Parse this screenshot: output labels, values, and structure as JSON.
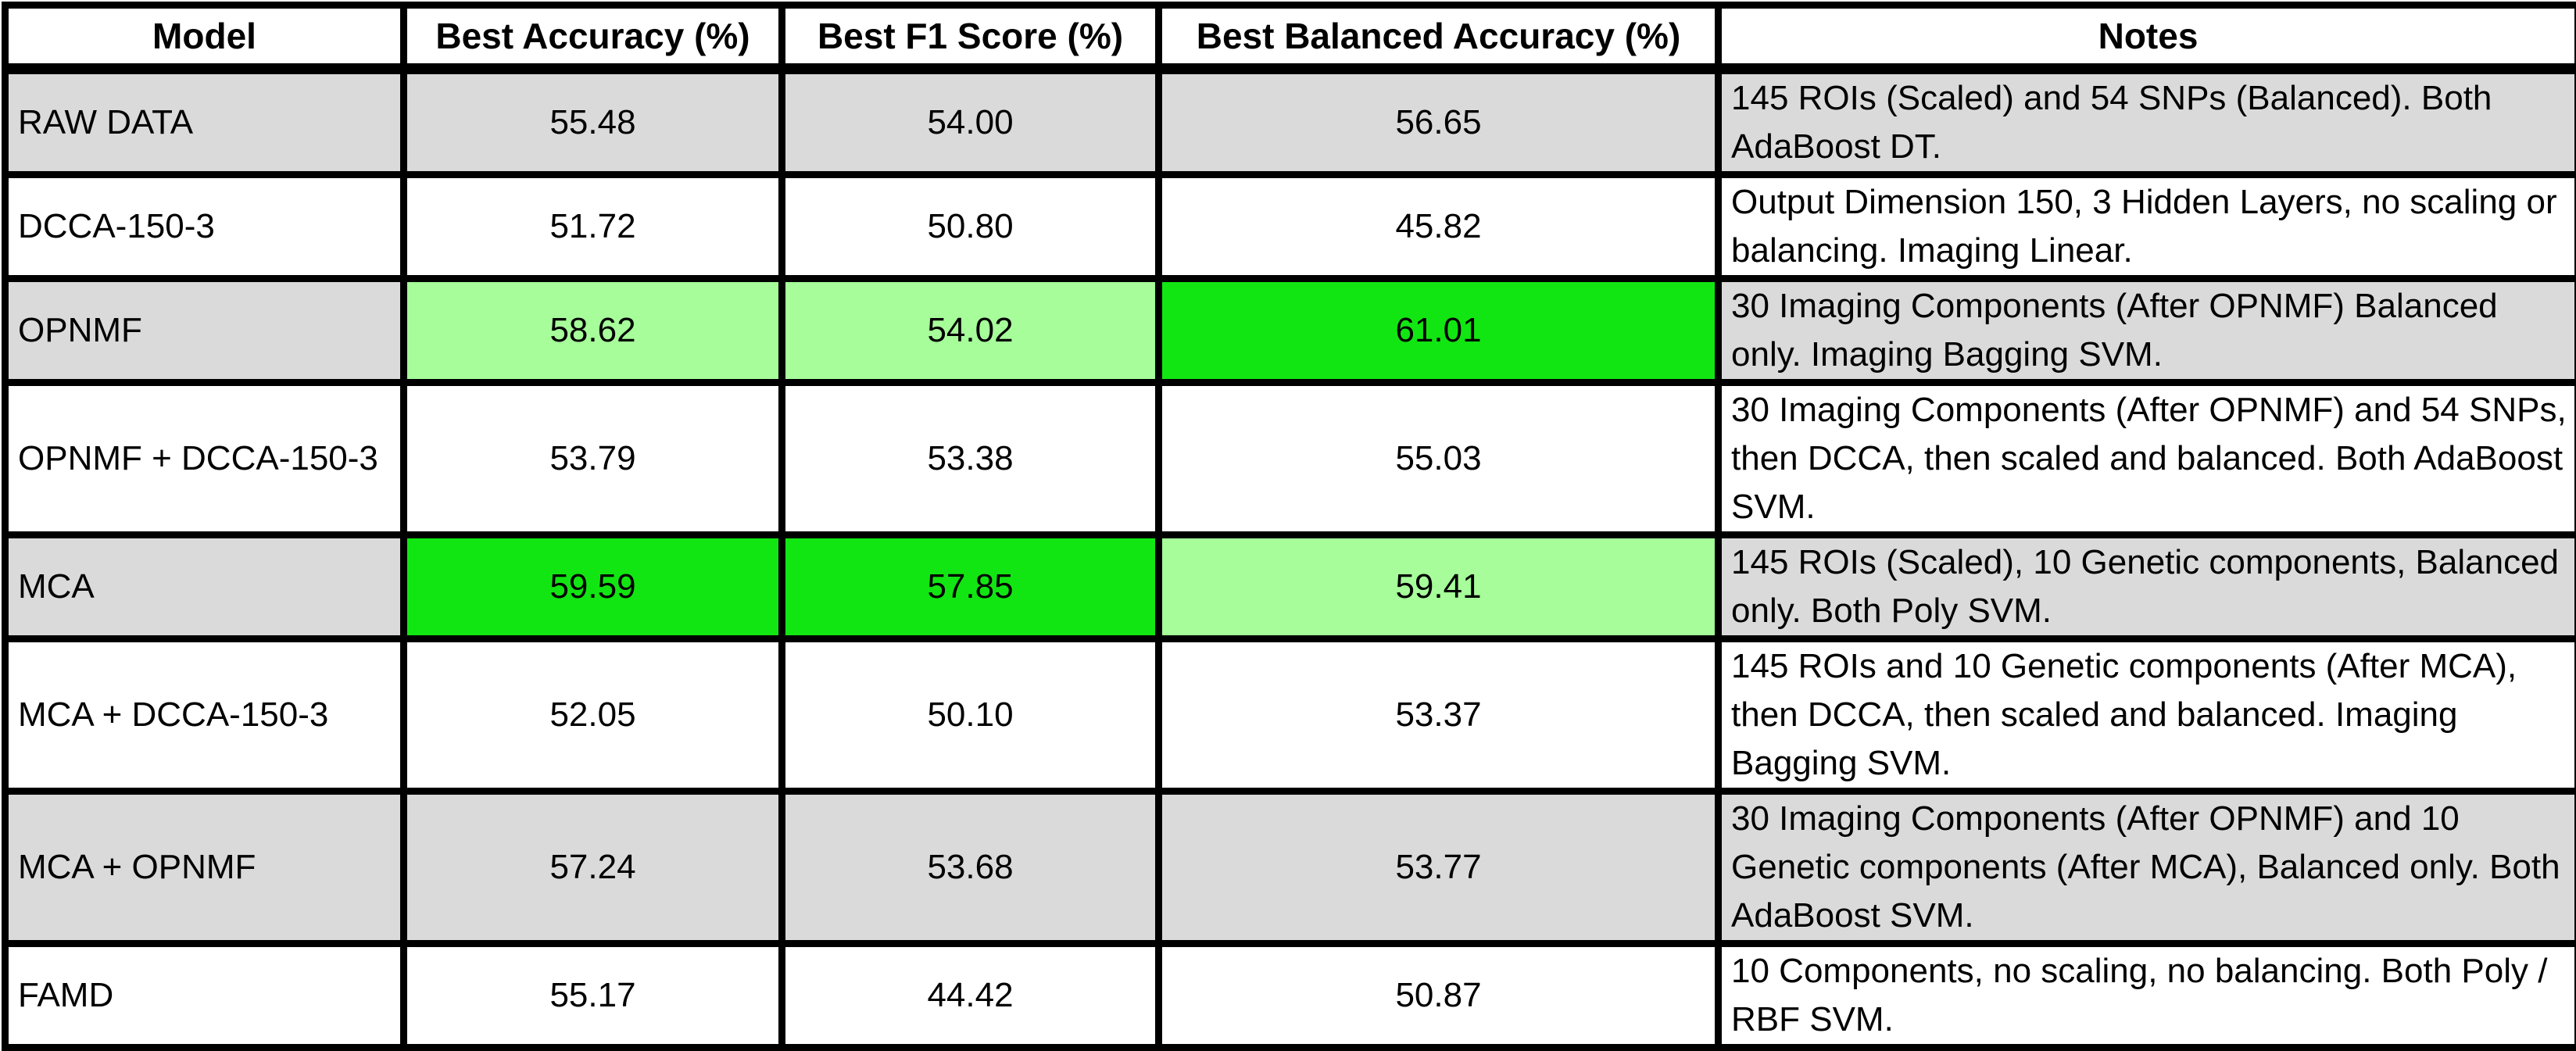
{
  "colors": {
    "gray_row": "#dadada",
    "white_row": "#ffffff",
    "best_highlight": "#12e612",
    "second_highlight": "#a6fd9a"
  },
  "table": {
    "headers": {
      "model": "Model",
      "accuracy": "Best Accuracy (%)",
      "f1": "Best F1 Score (%)",
      "balanced_accuracy": "Best Balanced Accuracy (%)",
      "notes": "Notes"
    },
    "rows": [
      {
        "model": "RAW DATA",
        "accuracy": "55.48",
        "f1": "54.00",
        "balanced_accuracy": "56.65",
        "notes": "145 ROIs (Scaled) and 54 SNPs (Balanced). Both AdaBoost DT."
      },
      {
        "model": "DCCA-150-3",
        "accuracy": "51.72",
        "f1": "50.80",
        "balanced_accuracy": "45.82",
        "notes": "Output Dimension 150, 3 Hidden Layers, no scaling or balancing. Imaging Linear."
      },
      {
        "model": "OPNMF",
        "accuracy": "58.62",
        "f1": "54.02",
        "balanced_accuracy": "61.01",
        "notes": "30 Imaging Components (After OPNMF) Balanced only. Imaging Bagging SVM."
      },
      {
        "model": "OPNMF + DCCA-150-3",
        "accuracy": "53.79",
        "f1": "53.38",
        "balanced_accuracy": "55.03",
        "notes": "30 Imaging Components (After OPNMF) and 54 SNPs, then DCCA, then scaled and balanced. Both AdaBoost SVM."
      },
      {
        "model": "MCA",
        "accuracy": "59.59",
        "f1": "57.85",
        "balanced_accuracy": "59.41",
        "notes": "145 ROIs (Scaled), 10 Genetic components, Balanced only. Both Poly SVM."
      },
      {
        "model": "MCA + DCCA-150-3",
        "accuracy": "52.05",
        "f1": "50.10",
        "balanced_accuracy": "53.37",
        "notes": "145 ROIs and 10 Genetic components (After MCA), then DCCA, then scaled and balanced. Imaging Bagging SVM."
      },
      {
        "model": "MCA + OPNMF",
        "accuracy": "57.24",
        "f1": "53.68",
        "balanced_accuracy": "53.77",
        "notes": "30 Imaging Components (After OPNMF) and 10 Genetic components (After MCA), Balanced only. Both AdaBoost SVM."
      },
      {
        "model": "FAMD",
        "accuracy": "55.17",
        "f1": "44.42",
        "balanced_accuracy": "50.87",
        "notes": "10 Components, no scaling, no balancing. Both Poly / RBF SVM."
      }
    ]
  }
}
